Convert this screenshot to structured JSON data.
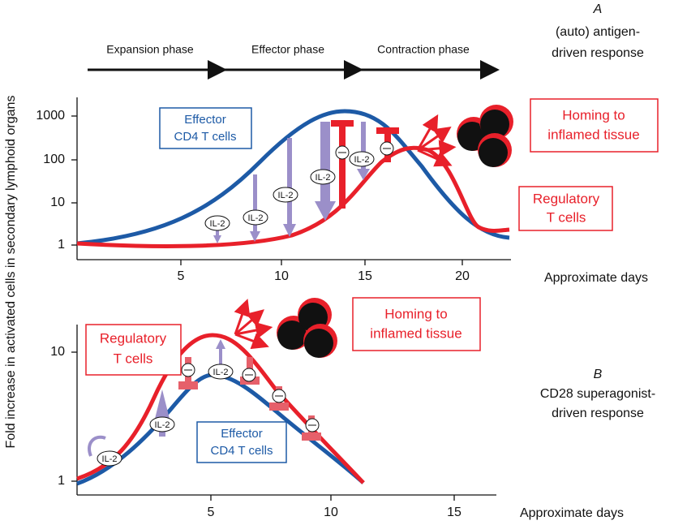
{
  "y_axis_label": "Fold increase in activated cells in secondary lymphoid organs",
  "panel_a": {
    "label": "A",
    "caption": [
      "(auto) antigen-",
      "driven response"
    ],
    "phases": [
      "Expansion phase",
      "Effector phase",
      "Contraction phase"
    ],
    "y_ticks": [
      "1000",
      "100",
      "10",
      "1"
    ],
    "x_ticks": [
      "5",
      "10",
      "15",
      "20"
    ],
    "x_label": "Approximate days",
    "effector_box": [
      "Effector",
      "CD4 T cells"
    ],
    "homing_box": [
      "Homing to",
      "inflamed tissue"
    ],
    "regulatory_box": [
      "Regulatory",
      "T cells"
    ],
    "il2_labels": [
      "IL-2",
      "IL-2",
      "IL-2",
      "IL-2",
      "IL-2"
    ]
  },
  "panel_b": {
    "label": "B",
    "caption": [
      "CD28 superagonist-",
      "driven response"
    ],
    "y_ticks": [
      "10",
      "1"
    ],
    "x_ticks": [
      "5",
      "10",
      "15"
    ],
    "x_label": "Approximate days",
    "regulatory_box": [
      "Regulatory",
      "T cells"
    ],
    "homing_box": [
      "Homing to",
      "inflamed tissue"
    ],
    "effector_box": [
      "Effector",
      "CD4 T cells"
    ],
    "il2_labels": [
      "IL-2",
      "IL-2",
      "IL-2"
    ]
  }
}
